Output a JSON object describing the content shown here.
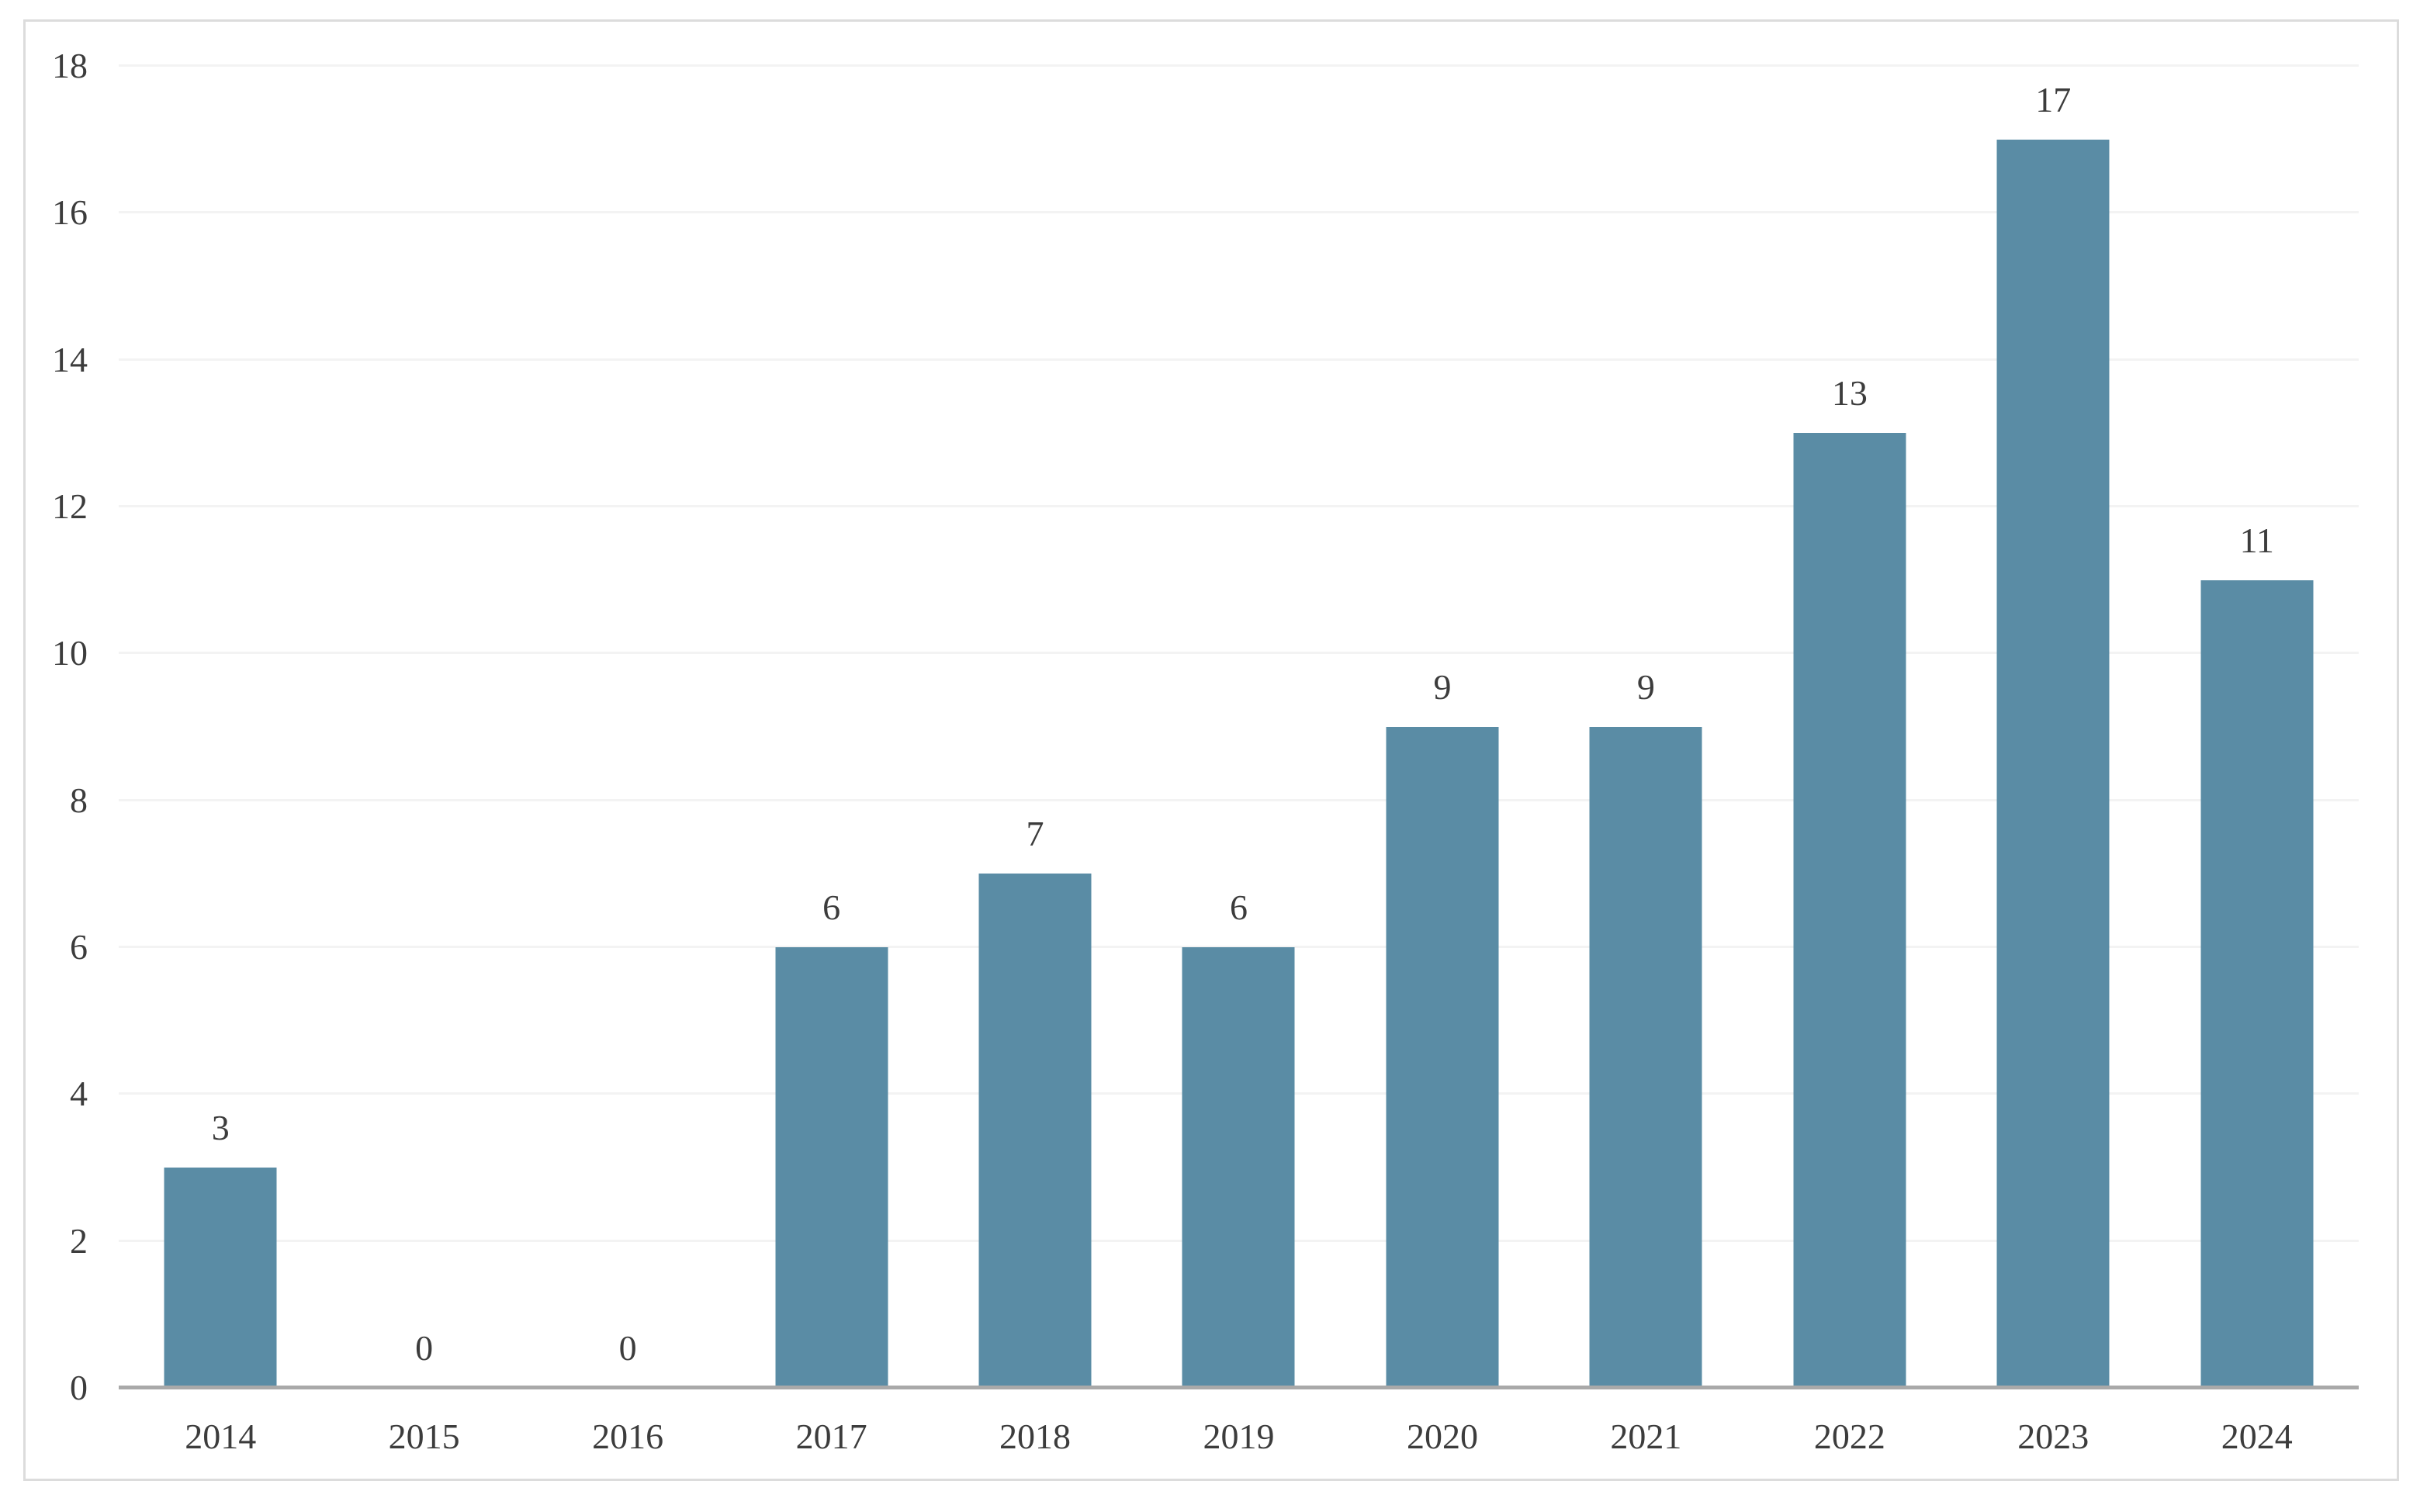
{
  "chart_data": {
    "type": "bar",
    "title": "",
    "xlabel": "",
    "ylabel": "",
    "categories": [
      "2014",
      "2015",
      "2016",
      "2017",
      "2018",
      "2019",
      "2020",
      "2021",
      "2022",
      "2023",
      "2024"
    ],
    "values": [
      3,
      0,
      0,
      6,
      7,
      6,
      9,
      9,
      13,
      17,
      11
    ],
    "ylim": [
      0,
      18
    ],
    "yticks": [
      0,
      2,
      4,
      6,
      8,
      10,
      12,
      14,
      16,
      18
    ],
    "grid": true,
    "legend": false,
    "data_labels": true,
    "colors": {
      "bar": "#5a8ca5",
      "gridline": "#f3f3f3",
      "axis_line": "#a9a9a9",
      "text": "#3c3c3c",
      "frame_border": "#dcdcdc",
      "background": "#ffffff"
    }
  }
}
